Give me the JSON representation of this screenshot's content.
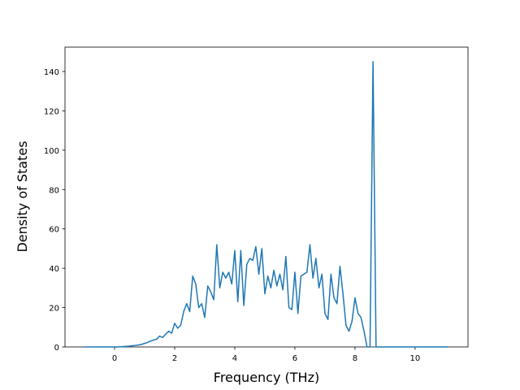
{
  "chart_data": {
    "type": "line",
    "x_label": "Frequency (THz)",
    "y_label": "Density of States",
    "x": [
      -1.0,
      -0.9,
      -0.8,
      -0.7,
      -0.6,
      -0.5,
      -0.4,
      -0.3,
      -0.2,
      -0.1,
      0.0,
      0.1,
      0.2,
      0.3,
      0.4,
      0.5,
      0.6,
      0.7,
      0.8,
      0.9,
      1.0,
      1.1,
      1.2,
      1.3,
      1.4,
      1.5,
      1.6,
      1.7,
      1.8,
      1.9,
      2.0,
      2.1,
      2.2,
      2.3,
      2.4,
      2.5,
      2.6,
      2.7,
      2.8,
      2.9,
      3.0,
      3.1,
      3.2,
      3.3,
      3.4,
      3.5,
      3.6,
      3.7,
      3.8,
      3.9,
      4.0,
      4.1,
      4.2,
      4.3,
      4.4,
      4.5,
      4.6,
      4.7,
      4.8,
      4.9,
      5.0,
      5.1,
      5.2,
      5.3,
      5.4,
      5.5,
      5.6,
      5.7,
      5.8,
      5.9,
      6.0,
      6.1,
      6.2,
      6.3,
      6.4,
      6.5,
      6.6,
      6.7,
      6.8,
      6.9,
      7.0,
      7.1,
      7.2,
      7.3,
      7.4,
      7.5,
      7.6,
      7.7,
      7.8,
      7.9,
      8.0,
      8.1,
      8.2,
      8.3,
      8.4,
      8.5,
      8.6,
      8.7,
      8.8,
      8.9,
      9.0,
      9.1,
      9.2,
      9.3,
      9.4,
      9.5,
      9.6,
      9.7,
      9.8,
      9.9,
      10.0,
      10.1,
      10.2,
      10.3,
      10.4,
      10.5,
      10.6,
      10.7,
      10.8,
      10.9,
      11.0,
      11.1
    ],
    "series": [
      {
        "color": "#1f77b4",
        "values": [
          0,
          0,
          0,
          0,
          0,
          0,
          0,
          0,
          0,
          0,
          0,
          0,
          0.1,
          0.2,
          0.3,
          0.4,
          0.6,
          0.8,
          1.0,
          1.3,
          1.8,
          2.3,
          3.0,
          3.5,
          4.0,
          5.5,
          4.8,
          6.5,
          8,
          7,
          12,
          9.5,
          11,
          18,
          22,
          18,
          36,
          32,
          20,
          22,
          15,
          31,
          28,
          24,
          52,
          30,
          38,
          35,
          38,
          32,
          49,
          23,
          49,
          21,
          42,
          45,
          44,
          51,
          37,
          50,
          27,
          36,
          30,
          39,
          31,
          37,
          29,
          46,
          20,
          19,
          38,
          17,
          36,
          37,
          38,
          52,
          35,
          45,
          30,
          37,
          17,
          14,
          37,
          25,
          22,
          41,
          27,
          11,
          8,
          13,
          25,
          17,
          15,
          8,
          0,
          0,
          145,
          0,
          0,
          0,
          0,
          0,
          0,
          0,
          0,
          0,
          0,
          0,
          0,
          0,
          0,
          0,
          0,
          0,
          0,
          0,
          0,
          0,
          0,
          0,
          0,
          0
        ]
      }
    ],
    "xlim": [
      -1.65,
      11.76
    ],
    "ylim": [
      0,
      152.4
    ],
    "xticks": [
      0,
      2,
      4,
      6,
      8,
      10
    ],
    "yticks": [
      0,
      20,
      40,
      60,
      80,
      100,
      120,
      140
    ]
  }
}
